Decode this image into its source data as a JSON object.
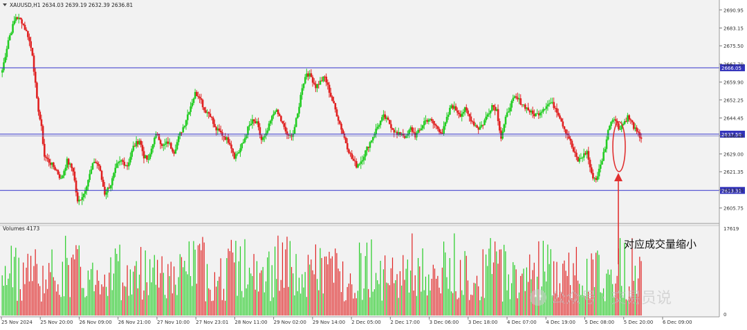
{
  "chart_data": {
    "type": "candlestick",
    "symbol_header": "XAUUSD,H1  2634.03 2639.19 2632.39 2636.81",
    "y_ticks": [
      "2690.95",
      "2683.15",
      "2675.50",
      "2667.70",
      "2659.90",
      "2652.25",
      "2644.45",
      "2636.85",
      "2629.00",
      "2621.35",
      "2613.55",
      "2605.75"
    ],
    "ylim": [
      2600,
      2694
    ],
    "horizontal_lines": [
      {
        "value": 2666.05,
        "label": "2666.05"
      },
      {
        "value": 2637.5,
        "label": "2637.50"
      },
      {
        "value": 2613.31,
        "label": "2613.31"
      }
    ],
    "x_labels": [
      "25 Nov 2024",
      "25 Nov 20:00",
      "26 Nov 09:00",
      "26 Nov 21:00",
      "27 Nov 10:00",
      "27 Nov 23:01",
      "28 Nov 11:00",
      "29 Nov 02:00",
      "29 Nov 14:00",
      "2 Dec 05:00",
      "2 Dec 17:00",
      "3 Dec 06:00",
      "3 Dec 18:00",
      "4 Dec 07:00",
      "4 Dec 19:00",
      "5 Dec 08:00",
      "5 Dec 20:00",
      "6 Dec 09:00"
    ],
    "price_path": [
      [
        0,
        2665
      ],
      [
        4,
        2678
      ],
      [
        9,
        2688
      ],
      [
        13,
        2686
      ],
      [
        17,
        2680
      ],
      [
        20,
        2672
      ],
      [
        23,
        2652
      ],
      [
        26,
        2640
      ],
      [
        28,
        2628
      ],
      [
        32,
        2625
      ],
      [
        36,
        2622
      ],
      [
        39,
        2618
      ],
      [
        43,
        2626
      ],
      [
        47,
        2622
      ],
      [
        50,
        2608
      ],
      [
        54,
        2612
      ],
      [
        57,
        2618
      ],
      [
        61,
        2626
      ],
      [
        64,
        2624
      ],
      [
        68,
        2612
      ],
      [
        72,
        2616
      ],
      [
        76,
        2624
      ],
      [
        79,
        2626
      ],
      [
        83,
        2624
      ],
      [
        87,
        2632
      ],
      [
        91,
        2635
      ],
      [
        94,
        2628
      ],
      [
        97,
        2626
      ],
      [
        100,
        2634
      ],
      [
        103,
        2638
      ],
      [
        106,
        2632
      ],
      [
        110,
        2634
      ],
      [
        114,
        2630
      ],
      [
        117,
        2636
      ],
      [
        121,
        2642
      ],
      [
        124,
        2648
      ],
      [
        128,
        2655
      ],
      [
        131,
        2654
      ],
      [
        134,
        2648
      ],
      [
        138,
        2646
      ],
      [
        141,
        2640
      ],
      [
        145,
        2638
      ],
      [
        148,
        2636
      ],
      [
        151,
        2634
      ],
      [
        154,
        2628
      ],
      [
        157,
        2630
      ],
      [
        160,
        2634
      ],
      [
        163,
        2640
      ],
      [
        166,
        2643
      ],
      [
        169,
        2642
      ],
      [
        172,
        2635
      ],
      [
        175,
        2637
      ],
      [
        178,
        2643
      ],
      [
        181,
        2648
      ],
      [
        184,
        2645
      ],
      [
        187,
        2640
      ],
      [
        190,
        2636
      ],
      [
        193,
        2638
      ],
      [
        196,
        2646
      ],
      [
        199,
        2658
      ],
      [
        202,
        2664
      ],
      [
        205,
        2662
      ],
      [
        208,
        2658
      ],
      [
        211,
        2660
      ],
      [
        214,
        2662
      ],
      [
        217,
        2656
      ],
      [
        220,
        2650
      ],
      [
        223,
        2644
      ],
      [
        226,
        2638
      ],
      [
        229,
        2632
      ],
      [
        232,
        2627
      ],
      [
        235,
        2624
      ],
      [
        238,
        2626
      ],
      [
        241,
        2630
      ],
      [
        244,
        2634
      ],
      [
        247,
        2638
      ],
      [
        250,
        2642
      ],
      [
        253,
        2645
      ],
      [
        256,
        2643
      ],
      [
        259,
        2640
      ],
      [
        262,
        2637
      ],
      [
        265,
        2638
      ],
      [
        268,
        2636
      ],
      [
        271,
        2640
      ],
      [
        274,
        2637
      ],
      [
        277,
        2639
      ],
      [
        280,
        2643
      ],
      [
        283,
        2644
      ],
      [
        286,
        2642
      ],
      [
        289,
        2640
      ],
      [
        292,
        2638
      ],
      [
        295,
        2644
      ],
      [
        298,
        2650
      ],
      [
        301,
        2648
      ],
      [
        304,
        2646
      ],
      [
        307,
        2648
      ],
      [
        310,
        2645
      ],
      [
        313,
        2642
      ],
      [
        316,
        2640
      ],
      [
        319,
        2642
      ],
      [
        322,
        2646
      ],
      [
        325,
        2650
      ],
      [
        328,
        2648
      ],
      [
        331,
        2636
      ],
      [
        334,
        2644
      ],
      [
        337,
        2650
      ],
      [
        340,
        2653
      ],
      [
        343,
        2652
      ],
      [
        346,
        2650
      ],
      [
        349,
        2648
      ],
      [
        352,
        2646
      ],
      [
        355,
        2646
      ],
      [
        358,
        2648
      ],
      [
        361,
        2650
      ],
      [
        364,
        2651
      ],
      [
        367,
        2649
      ],
      [
        370,
        2645
      ],
      [
        373,
        2640
      ],
      [
        376,
        2636
      ],
      [
        379,
        2630
      ],
      [
        382,
        2626
      ],
      [
        385,
        2628
      ],
      [
        388,
        2630
      ],
      [
        391,
        2620
      ],
      [
        394,
        2618
      ],
      [
        397,
        2624
      ],
      [
        400,
        2632
      ],
      [
        403,
        2642
      ],
      [
        406,
        2645
      ],
      [
        409,
        2640
      ],
      [
        412,
        2642
      ],
      [
        415,
        2645
      ],
      [
        418,
        2642
      ],
      [
        421,
        2638
      ],
      [
        424,
        2636
      ]
    ],
    "volume_label": "Volumes 4173",
    "volume_ticks": [
      "17619",
      "0"
    ],
    "volume_max": 17619
  },
  "annotation": {
    "text": "对应成交量缩小"
  },
  "watermark": {
    "text": "公众号 · 交易员说"
  },
  "colors": {
    "bull": "#22cc22",
    "bear": "#e02020",
    "hline": "#3333cc",
    "annotation": "#e03030",
    "axis_text": "#333333",
    "label_fill": "#3333bb"
  }
}
